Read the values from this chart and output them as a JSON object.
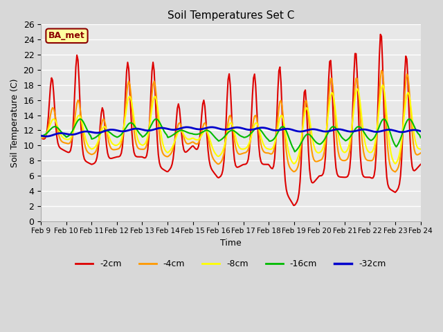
{
  "title": "Soil Temperatures Set C",
  "xlabel": "Time",
  "ylabel": "Soil Temperature (C)",
  "ylim": [
    0,
    26
  ],
  "yticks": [
    0,
    2,
    4,
    6,
    8,
    10,
    12,
    14,
    16,
    18,
    20,
    22,
    24,
    26
  ],
  "xtick_labels": [
    "Feb 9",
    "Feb 10",
    "Feb 11",
    "Feb 12",
    "Feb 13",
    "Feb 14",
    "Feb 15",
    "Feb 16",
    "Feb 17",
    "Feb 18",
    "Feb 19",
    "Feb 20",
    "Feb 21",
    "Feb 22",
    "Feb 23",
    "Feb 24"
  ],
  "fig_bg": "#d8d8d8",
  "plot_bg": "#e8e8e8",
  "grid_color": "#ffffff",
  "annotation_text": "BA_met",
  "annotation_fg": "#8b0000",
  "annotation_bg": "#ffffa0",
  "series_colors": {
    "m2cm": "#dd0000",
    "m4cm": "#ff9900",
    "m8cm": "#ffff00",
    "m16cm": "#00bb00",
    "m32cm": "#0000cc"
  },
  "series_labels": {
    "m2cm": "-2cm",
    "m4cm": "-4cm",
    "m8cm": "-8cm",
    "m16cm": "-16cm",
    "m32cm": "-32cm"
  }
}
